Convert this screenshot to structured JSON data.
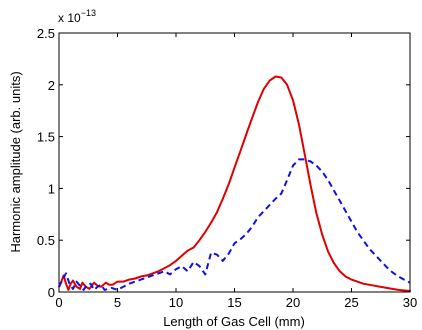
{
  "chart_data": {
    "type": "line",
    "title": "",
    "xlabel": "Length of Gas Cell (mm)",
    "ylabel": "Harmonic amplitude (arb. units)",
    "xlim": [
      0,
      30
    ],
    "ylim": [
      0,
      2.5
    ],
    "x_ticks": [
      0,
      5,
      10,
      15,
      20,
      25,
      30
    ],
    "y_ticks": [
      0,
      0.5,
      1,
      1.5,
      2,
      2.5
    ],
    "x_tick_labels": [
      "0",
      "5",
      "10",
      "15",
      "20",
      "25",
      "30"
    ],
    "y_tick_labels": [
      "0",
      "0.5",
      "1",
      "1.5",
      "2",
      "2.5"
    ],
    "y_exponent_label": "x 10",
    "y_exponent_power": "−13",
    "grid": false,
    "legend": "none",
    "series": [
      {
        "color": "#e00000",
        "style": "solid",
        "x": [
          0,
          0.2,
          0.4,
          0.6,
          0.8,
          1.0,
          1.2,
          1.5,
          1.8,
          2.0,
          2.3,
          2.6,
          3.0,
          3.3,
          3.6,
          4.0,
          4.3,
          4.6,
          5.0,
          5.5,
          6.0,
          6.5,
          7.0,
          7.5,
          8.0,
          8.5,
          9.0,
          9.5,
          10.0,
          10.5,
          11.0,
          11.5,
          12.0,
          12.5,
          13.0,
          13.5,
          14.0,
          14.5,
          15.0,
          15.5,
          16.0,
          16.5,
          17.0,
          17.5,
          18.0,
          18.5,
          19.0,
          19.5,
          20.0,
          20.5,
          21.0,
          21.5,
          22.0,
          22.5,
          23.0,
          23.5,
          24.0,
          24.5,
          25.0,
          25.5,
          26.0,
          27.0,
          28.0,
          29.0,
          30.0
        ],
        "y": [
          0.05,
          0.1,
          0.16,
          0.08,
          0.02,
          0.08,
          0.11,
          0.05,
          0.03,
          0.09,
          0.05,
          0.03,
          0.09,
          0.06,
          0.05,
          0.09,
          0.07,
          0.07,
          0.1,
          0.1,
          0.12,
          0.13,
          0.15,
          0.16,
          0.18,
          0.2,
          0.23,
          0.26,
          0.3,
          0.35,
          0.4,
          0.43,
          0.5,
          0.58,
          0.67,
          0.77,
          0.9,
          1.04,
          1.2,
          1.36,
          1.52,
          1.68,
          1.83,
          1.96,
          2.04,
          2.08,
          2.07,
          2.0,
          1.85,
          1.62,
          1.33,
          1.03,
          0.76,
          0.55,
          0.39,
          0.28,
          0.2,
          0.15,
          0.12,
          0.1,
          0.08,
          0.06,
          0.04,
          0.02,
          0.01
        ]
      },
      {
        "color": "#1010e0",
        "style": "dashed",
        "x": [
          0,
          0.3,
          0.6,
          0.9,
          1.2,
          1.5,
          1.8,
          2.1,
          2.4,
          2.7,
          3.0,
          3.3,
          3.6,
          3.9,
          4.2,
          4.5,
          5.0,
          5.5,
          6.0,
          6.5,
          7.0,
          7.5,
          8.0,
          8.5,
          9.0,
          9.5,
          10.0,
          10.5,
          11.0,
          11.5,
          12.0,
          12.5,
          13.0,
          13.5,
          14.0,
          14.5,
          15.0,
          15.5,
          16.0,
          16.5,
          17.0,
          17.5,
          18.0,
          18.5,
          19.0,
          19.5,
          20.0,
          20.5,
          21.0,
          21.5,
          22.0,
          22.5,
          23.0,
          23.5,
          24.0,
          24.5,
          25.0,
          25.5,
          26.0,
          26.5,
          27.0,
          27.5,
          28.0,
          28.5,
          29.0,
          29.5,
          30.0
        ],
        "y": [
          0.05,
          0.12,
          0.18,
          0.08,
          0.03,
          0.1,
          0.06,
          0.02,
          0.07,
          0.08,
          0.02,
          0.05,
          0.07,
          0.02,
          0.03,
          0.04,
          0.02,
          0.05,
          0.08,
          0.1,
          0.12,
          0.14,
          0.16,
          0.18,
          0.2,
          0.17,
          0.22,
          0.25,
          0.2,
          0.29,
          0.25,
          0.17,
          0.38,
          0.36,
          0.3,
          0.37,
          0.47,
          0.51,
          0.56,
          0.63,
          0.72,
          0.78,
          0.84,
          0.9,
          0.95,
          1.08,
          1.22,
          1.28,
          1.28,
          1.26,
          1.22,
          1.16,
          1.08,
          0.98,
          0.88,
          0.78,
          0.68,
          0.58,
          0.5,
          0.42,
          0.36,
          0.3,
          0.24,
          0.19,
          0.15,
          0.12,
          0.09
        ]
      }
    ]
  }
}
